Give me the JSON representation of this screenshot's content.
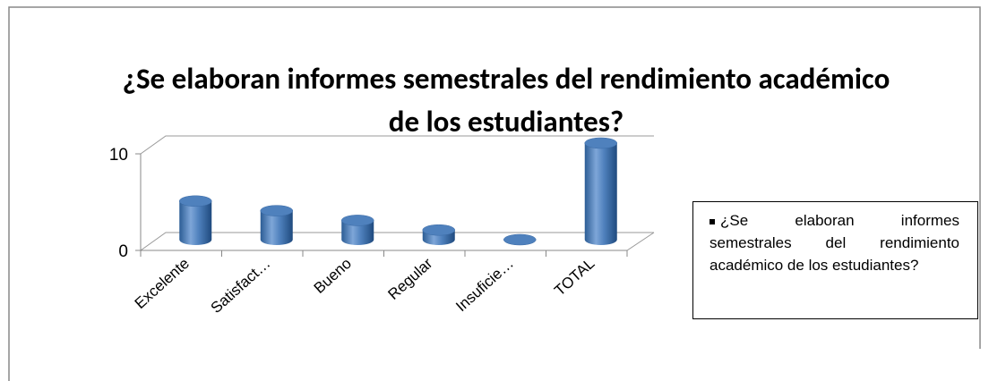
{
  "chart_data": {
    "type": "bar",
    "title": "¿Se elaboran informes semestrales del rendimiento académico de los estudiantes?",
    "categories": [
      "Excelente",
      "Satisfact…",
      "Bueno",
      "Regular",
      "Insuficie…",
      "TOTAL"
    ],
    "series": [
      {
        "name": "¿Se elaboran informes semestrales del rendimiento académico de los estudiantes?",
        "color": "#4f81bd",
        "values": [
          4,
          3,
          2,
          1,
          0,
          10
        ]
      }
    ],
    "ylim": [
      0,
      10
    ],
    "yticks": [
      0,
      10
    ],
    "grid": true,
    "legend": "right"
  }
}
